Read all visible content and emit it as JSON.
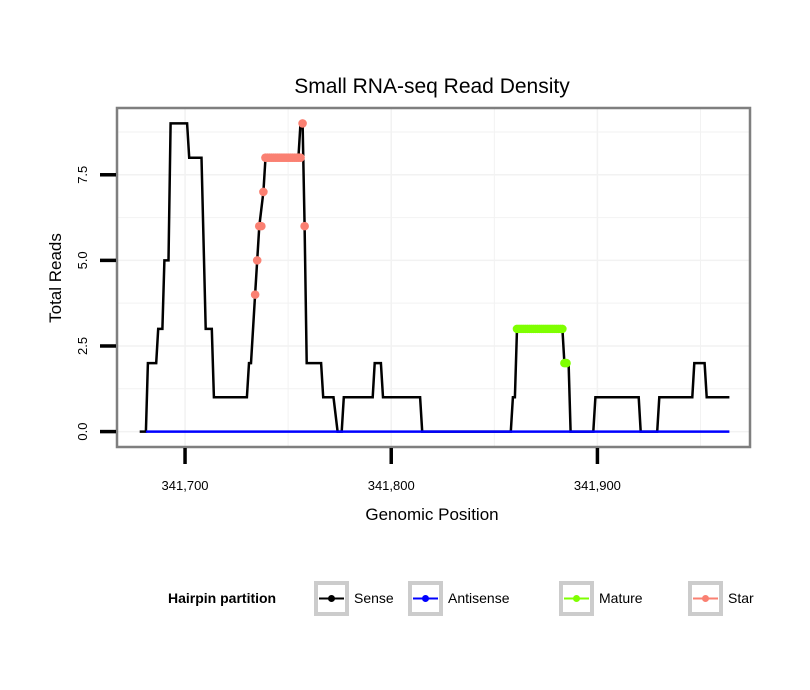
{
  "chart_data": {
    "type": "line",
    "title": "Small RNA-seq Read Density",
    "xlabel": "Genomic Position",
    "ylabel": "Total Reads",
    "xlim": [
      341667,
      341974
    ],
    "ylim": [
      -0.45,
      9.45
    ],
    "x_ticks": [
      341700,
      341800,
      341900
    ],
    "x_tick_labels": [
      "341,700",
      "341,800",
      "341,900"
    ],
    "y_ticks": [
      0,
      2.5,
      5,
      7.5
    ],
    "y_tick_labels": [
      "0.0",
      "2.5",
      "5.0",
      "7.5"
    ],
    "grid": true,
    "legend": {
      "title": "Hairpin partition",
      "position": "bottom",
      "entries": [
        {
          "name": "Sense",
          "color": "#000000"
        },
        {
          "name": "Antisense",
          "color": "#0000ff"
        },
        {
          "name": "Mature",
          "color": "#7fff00"
        },
        {
          "name": "Star",
          "color": "#fa8072"
        }
      ]
    },
    "series": [
      {
        "name": "Sense",
        "color": "#000000",
        "style": "line",
        "x": [
          341678,
          341681,
          341682,
          341686,
          341687,
          341689,
          341690,
          341692,
          341693,
          341701,
          341702,
          341708,
          341710,
          341713,
          341714,
          341730,
          341731,
          341732,
          341734,
          341735,
          341736,
          341738,
          341739,
          341755,
          341756,
          341757,
          341758,
          341759,
          341766,
          341767,
          341771,
          341772,
          341774,
          341776,
          341777,
          341790,
          341791,
          341792,
          341795,
          341796,
          341814,
          341815,
          341858,
          341859,
          341860,
          341861,
          341883,
          341884,
          341885,
          341886,
          341887,
          341898,
          341899,
          341920,
          341921,
          341929,
          341930,
          341946,
          341947,
          341952,
          341953,
          341964
        ],
        "y": [
          0,
          0,
          2,
          2,
          3,
          3,
          5,
          5,
          9,
          9,
          8,
          8,
          3,
          3,
          1,
          1,
          2,
          2,
          4,
          5,
          6,
          7,
          8,
          8,
          9,
          9,
          6,
          2,
          2,
          1,
          1,
          1,
          0,
          0,
          1,
          1,
          1,
          2,
          2,
          1,
          1,
          0,
          0,
          1,
          1,
          3,
          3,
          2,
          2,
          2,
          0,
          0,
          1,
          1,
          0,
          0,
          1,
          1,
          2,
          2,
          1,
          1
        ]
      },
      {
        "name": "Antisense",
        "color": "#0000ff",
        "style": "line",
        "x": [
          341681,
          341964
        ],
        "y": [
          0,
          0
        ]
      },
      {
        "name": "Mature",
        "color": "#7fff00",
        "style": "points",
        "x": [
          341861,
          341862,
          341863,
          341864,
          341865,
          341866,
          341867,
          341868,
          341869,
          341870,
          341871,
          341872,
          341873,
          341874,
          341875,
          341876,
          341877,
          341878,
          341879,
          341880,
          341881,
          341882,
          341883,
          341884,
          341885
        ],
        "y": [
          3,
          3,
          3,
          3,
          3,
          3,
          3,
          3,
          3,
          3,
          3,
          3,
          3,
          3,
          3,
          3,
          3,
          3,
          3,
          3,
          3,
          3,
          3,
          2,
          2
        ]
      },
      {
        "name": "Star",
        "color": "#fa8072",
        "style": "points",
        "x": [
          341734,
          341735,
          341736,
          341737,
          341738,
          341739,
          341740,
          341741,
          341742,
          341743,
          341744,
          341745,
          341746,
          341747,
          341748,
          341749,
          341750,
          341751,
          341752,
          341753,
          341754,
          341755,
          341756,
          341757,
          341758
        ],
        "y": [
          4,
          5,
          6,
          6,
          7,
          8,
          8,
          8,
          8,
          8,
          8,
          8,
          8,
          8,
          8,
          8,
          8,
          8,
          8,
          8,
          8,
          8,
          8,
          9,
          6
        ]
      }
    ]
  }
}
